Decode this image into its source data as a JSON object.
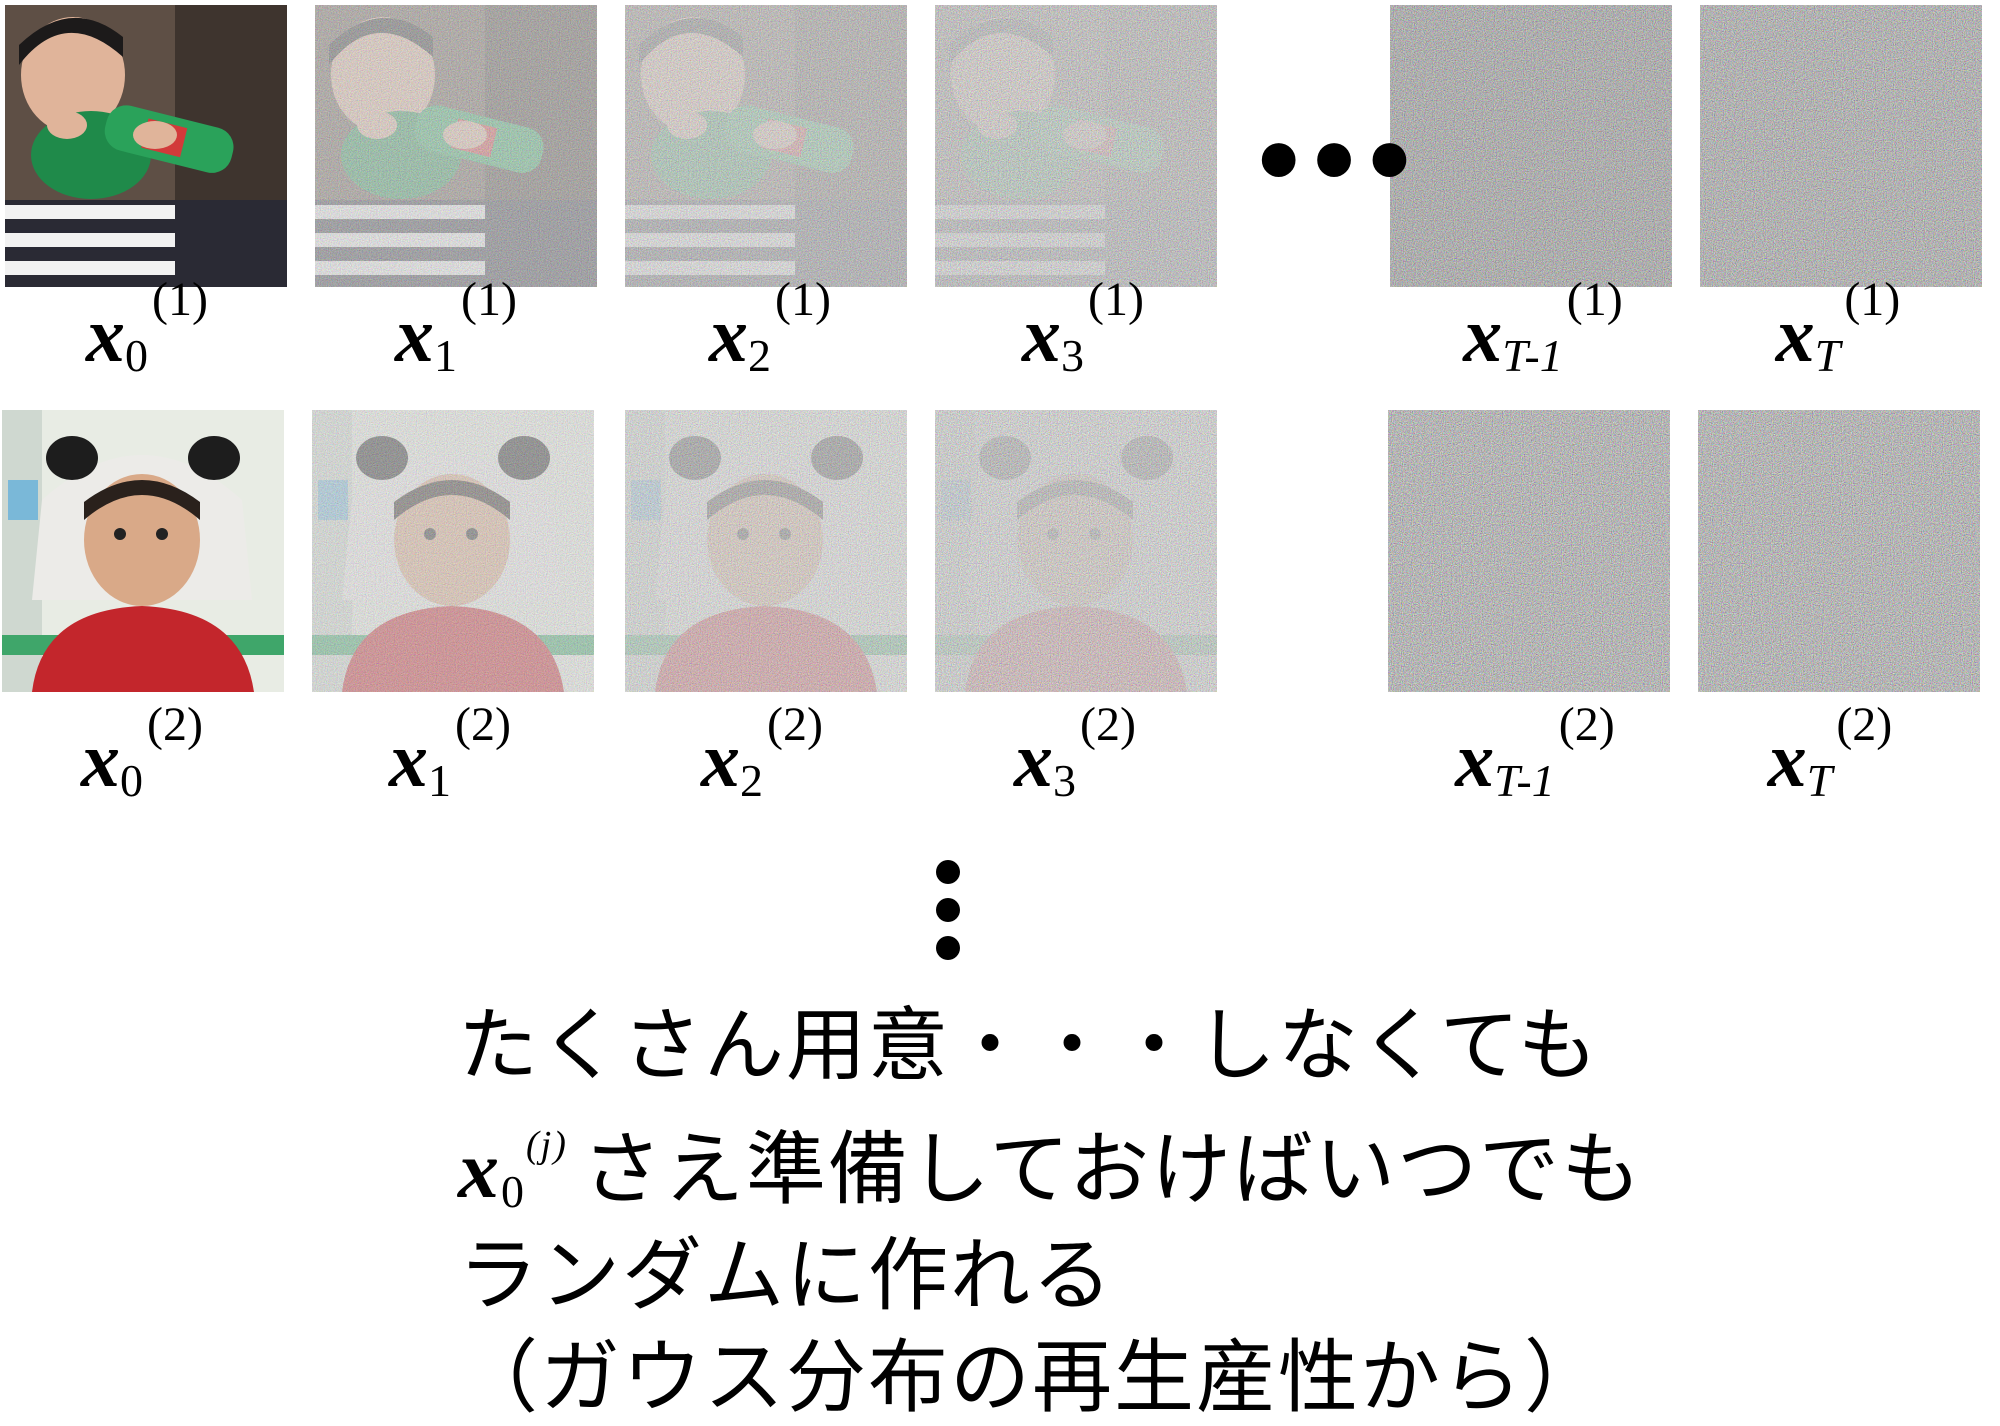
{
  "ellipsis": "•••",
  "rows": [
    {
      "labels": [
        {
          "var": "x",
          "sub": "0",
          "sup": "(1)"
        },
        {
          "var": "x",
          "sub": "1",
          "sup": "(1)"
        },
        {
          "var": "x",
          "sub": "2",
          "sup": "(1)"
        },
        {
          "var": "x",
          "sub": "3",
          "sup": "(1)"
        },
        {
          "var": "x",
          "sub": "T-1",
          "sup": "(1)"
        },
        {
          "var": "x",
          "sub": "T",
          "sup": "(1)"
        }
      ]
    },
    {
      "labels": [
        {
          "var": "x",
          "sub": "0",
          "sup": "(2)"
        },
        {
          "var": "x",
          "sub": "1",
          "sup": "(2)"
        },
        {
          "var": "x",
          "sub": "2",
          "sup": "(2)"
        },
        {
          "var": "x",
          "sub": "3",
          "sup": "(2)"
        },
        {
          "var": "x",
          "sub": "T-1",
          "sup": "(2)"
        },
        {
          "var": "x",
          "sub": "T",
          "sup": "(2)"
        }
      ]
    }
  ],
  "caption": {
    "line1": "たくさん用意・・・しなくても",
    "line2_var": "x",
    "line2_sub": "0",
    "line2_sup": "(j)",
    "line2_text": "さえ準備しておけばいつでも",
    "line3": "ランダムに作れる",
    "line4": "（ガウス分布の再生産性から）"
  }
}
